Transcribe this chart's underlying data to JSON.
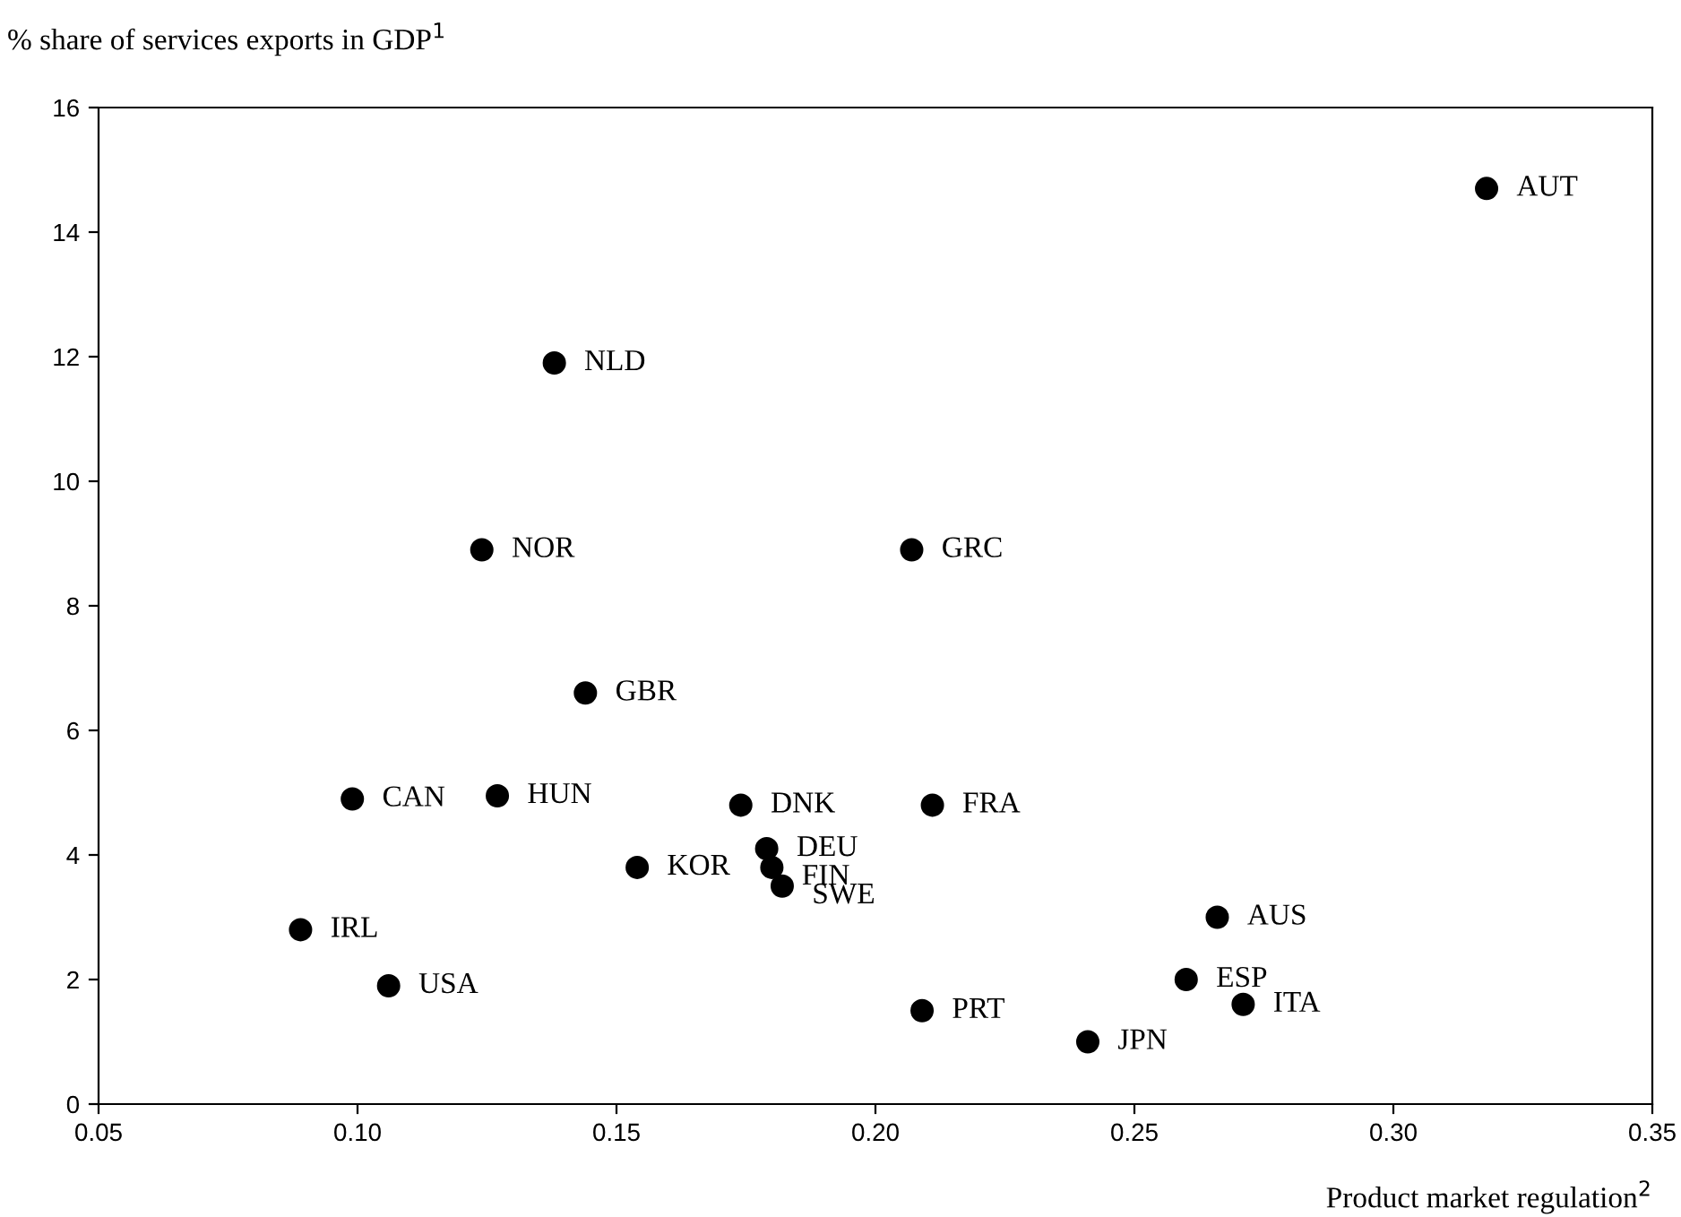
{
  "chart_data": {
    "type": "scatter",
    "ylabel": "% share of services exports in GDP$^{1}$",
    "xlabel": "Product market regulation$^{2}$",
    "x": [
      0.318,
      0.138,
      0.124,
      0.207,
      0.144,
      0.099,
      0.127,
      0.174,
      0.211,
      0.179,
      0.18,
      0.182,
      0.154,
      0.089,
      0.106,
      0.209,
      0.241,
      0.266,
      0.26,
      0.271
    ],
    "values": [
      14.7,
      11.9,
      8.9,
      8.9,
      6.6,
      4.9,
      4.95,
      4.8,
      4.8,
      4.1,
      3.8,
      3.5,
      3.8,
      2.8,
      1.9,
      1.5,
      1.0,
      3.0,
      2.0,
      1.6
    ],
    "color": "#000000",
    "marker": "circle",
    "annotations": [
      {
        "text": "AUT",
        "x": 0.318,
        "y": 14.7
      },
      {
        "text": "NLD",
        "x": 0.138,
        "y": 11.9
      },
      {
        "text": "NOR",
        "x": 0.124,
        "y": 8.9
      },
      {
        "text": "GRC",
        "x": 0.207,
        "y": 8.9
      },
      {
        "text": "GBR",
        "x": 0.144,
        "y": 6.6
      },
      {
        "text": "CAN",
        "x": 0.099,
        "y": 4.9
      },
      {
        "text": "HUN",
        "x": 0.127,
        "y": 4.95
      },
      {
        "text": "DNK",
        "x": 0.174,
        "y": 4.8
      },
      {
        "text": "FRA",
        "x": 0.211,
        "y": 4.8
      },
      {
        "text": "DEU",
        "x": 0.179,
        "y": 4.1
      },
      {
        "text": "FIN",
        "x": 0.18,
        "y": 3.8
      },
      {
        "text": "SWE",
        "x": 0.182,
        "y": 3.5
      },
      {
        "text": "KOR",
        "x": 0.154,
        "y": 3.8
      },
      {
        "text": "IRL",
        "x": 0.089,
        "y": 2.8
      },
      {
        "text": "USA",
        "x": 0.106,
        "y": 1.9
      },
      {
        "text": "PRT",
        "x": 0.209,
        "y": 1.5
      },
      {
        "text": "JPN",
        "x": 0.241,
        "y": 1.0
      },
      {
        "text": "AUS",
        "x": 0.266,
        "y": 3.0
      },
      {
        "text": "ESP",
        "x": 0.26,
        "y": 2.0
      },
      {
        "text": "ITA",
        "x": 0.271,
        "y": 1.6
      }
    ],
    "xlim": [
      0.05,
      0.35
    ],
    "xticks": [
      {
        "value": 0.05,
        "label": "0.05"
      },
      {
        "value": 0.1,
        "label": "0.10"
      },
      {
        "value": 0.15,
        "label": "0.15"
      },
      {
        "value": 0.2,
        "label": "0.20"
      },
      {
        "value": 0.25,
        "label": "0.25"
      },
      {
        "value": 0.3,
        "label": "0.30"
      },
      {
        "value": 0.35,
        "label": "0.35"
      }
    ],
    "ylim": [
      0,
      16
    ],
    "yticks": [
      0,
      2,
      4,
      6,
      8,
      10,
      12,
      14,
      16
    ],
    "grid": false,
    "legend": false
  }
}
